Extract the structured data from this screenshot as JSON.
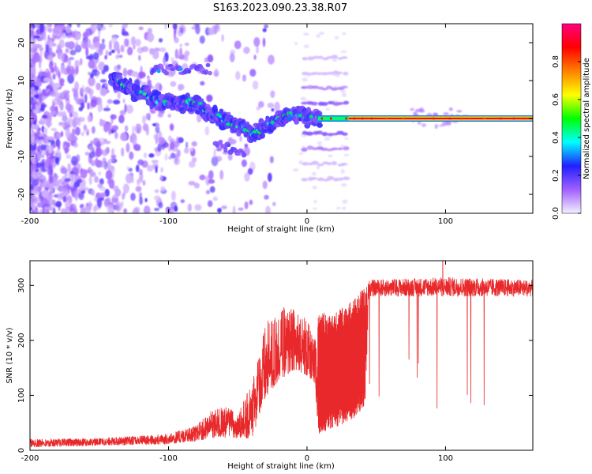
{
  "title": "S163.2023.090.23.38.R07",
  "colors": {
    "snr_line": "#e8282a",
    "axis": "#000000"
  },
  "chart_data": [
    {
      "type": "heatmap",
      "xlabel": "Height of straight line (km)",
      "ylabel": "Frequency (Hz)",
      "xlim": [
        -200,
        163
      ],
      "ylim": [
        -25,
        25
      ],
      "xticks": [
        -200,
        -100,
        0,
        100
      ],
      "xtick_labels": [
        "-200",
        "-100",
        "0",
        "100"
      ],
      "yticks": [
        -20,
        -10,
        0,
        10,
        20
      ],
      "ytick_labels": [
        "-20",
        "-10",
        "0",
        "10",
        "20"
      ],
      "colorbar": {
        "label": "Normalized spectral amplitude",
        "range": [
          0,
          1
        ],
        "ticks": [
          0.0,
          0.2,
          0.4,
          0.6,
          0.8
        ],
        "tick_labels": [
          "0.0",
          "0.2",
          "0.4",
          "0.6",
          "0.8"
        ],
        "colormap": [
          "#f4f0ff",
          "#a060ff",
          "#2020ff",
          "#00ffff",
          "#00ff00",
          "#ffff00",
          "#ff8000",
          "#ff0000",
          "#ff0080"
        ]
      },
      "ridge": [
        {
          "x": -140,
          "y": 10
        },
        {
          "x": -125,
          "y": 7.5
        },
        {
          "x": -110,
          "y": 5
        },
        {
          "x": -95,
          "y": 4
        },
        {
          "x": -80,
          "y": 4
        },
        {
          "x": -70,
          "y": 1
        },
        {
          "x": -60,
          "y": 0
        },
        {
          "x": -50,
          "y": -2
        },
        {
          "x": -40,
          "y": -4
        },
        {
          "x": -30,
          "y": -2
        },
        {
          "x": -20,
          "y": 0
        },
        {
          "x": -10,
          "y": 1
        },
        {
          "x": 0,
          "y": 0.5
        },
        {
          "x": 8,
          "y": 0
        },
        {
          "x": 163,
          "y": 0
        }
      ]
    },
    {
      "type": "line",
      "xlabel": "Height of straight line (km)",
      "ylabel": "SNR (10 * v/v)",
      "xlim": [
        -200,
        163
      ],
      "ylim": [
        0,
        345
      ],
      "xticks": [
        -200,
        -100,
        0,
        100
      ],
      "xtick_labels": [
        "-200",
        "-100",
        "0",
        "100"
      ],
      "yticks": [
        0,
        100,
        200,
        300
      ],
      "ytick_labels": [
        "0",
        "100",
        "200",
        "300"
      ],
      "envelope": [
        {
          "x": -200,
          "lo": 5,
          "hi": 20
        },
        {
          "x": -150,
          "lo": 8,
          "hi": 22
        },
        {
          "x": -100,
          "lo": 10,
          "hi": 30
        },
        {
          "x": -80,
          "lo": 15,
          "hi": 45
        },
        {
          "x": -70,
          "lo": 20,
          "hi": 70
        },
        {
          "x": -60,
          "lo": 20,
          "hi": 80
        },
        {
          "x": -50,
          "lo": 20,
          "hi": 70
        },
        {
          "x": -40,
          "lo": 15,
          "hi": 120
        },
        {
          "x": -35,
          "lo": 50,
          "hi": 180
        },
        {
          "x": -30,
          "lo": 90,
          "hi": 230
        },
        {
          "x": -20,
          "lo": 120,
          "hi": 260
        },
        {
          "x": -10,
          "lo": 140,
          "hi": 260
        },
        {
          "x": 0,
          "lo": 130,
          "hi": 240
        },
        {
          "x": 5,
          "lo": 120,
          "hi": 200
        },
        {
          "x": 8,
          "lo": 30,
          "hi": 250
        },
        {
          "x": 20,
          "lo": 40,
          "hi": 250
        },
        {
          "x": 35,
          "lo": 60,
          "hi": 280
        },
        {
          "x": 42,
          "lo": 80,
          "hi": 300
        },
        {
          "x": 45,
          "lo": 280,
          "hi": 310
        },
        {
          "x": 100,
          "lo": 280,
          "hi": 315
        },
        {
          "x": 163,
          "lo": 280,
          "hi": 310
        }
      ],
      "peak": {
        "x": 98,
        "y": 345
      }
    }
  ]
}
